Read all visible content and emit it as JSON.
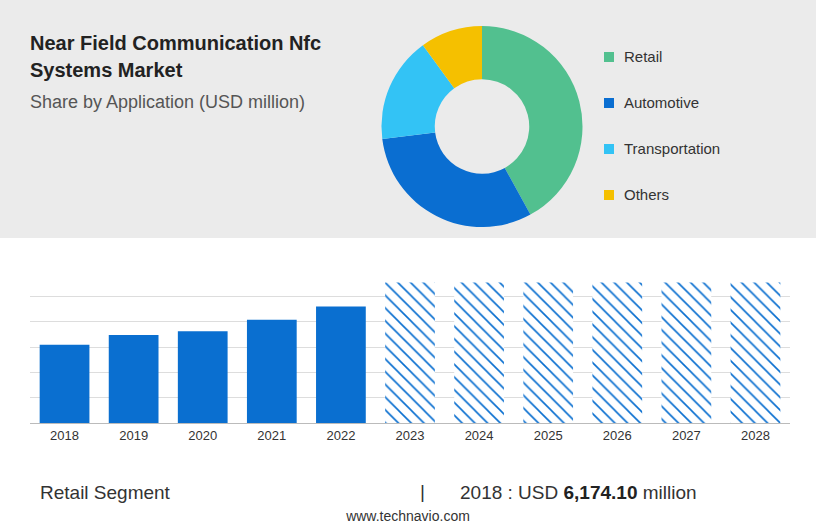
{
  "header": {
    "title": "Near Field Communication Nfc Systems Market",
    "subtitle": "Share by Application (USD million)"
  },
  "chart_data": [
    {
      "type": "donut",
      "categories": [
        "Retail",
        "Automotive",
        "Transportation",
        "Others"
      ],
      "values": [
        42,
        31,
        17,
        10
      ],
      "colors": [
        "#52c08f",
        "#0a6ed1",
        "#33c3f5",
        "#f5c000"
      ]
    },
    {
      "type": "bar",
      "categories": [
        "2018",
        "2019",
        "2020",
        "2021",
        "2022",
        "2023",
        "2024",
        "2025",
        "2026",
        "2027",
        "2028"
      ],
      "series": [
        {
          "values": [
            6174.1,
            6950,
            7250,
            8150,
            9200,
            null,
            null,
            null,
            null,
            null,
            null
          ],
          "color": "#0a6fd0",
          "marker": "solid"
        },
        {
          "values": [
            null,
            null,
            null,
            null,
            null,
            11100,
            11100,
            11100,
            11100,
            11100,
            11100
          ],
          "color": "#0a6fd0",
          "marker": "hatch"
        }
      ],
      "ylim": [
        0,
        12000
      ],
      "yticks": [
        0,
        2000,
        4000,
        6000,
        8000,
        10000,
        12000
      ],
      "grid": true,
      "tick_labels": "x"
    }
  ],
  "footer": {
    "segment": "Retail Segment",
    "separator": "|",
    "label": "2018 : USD",
    "value": "6,174.10",
    "unit": "million",
    "source": "www.technavio.com"
  }
}
